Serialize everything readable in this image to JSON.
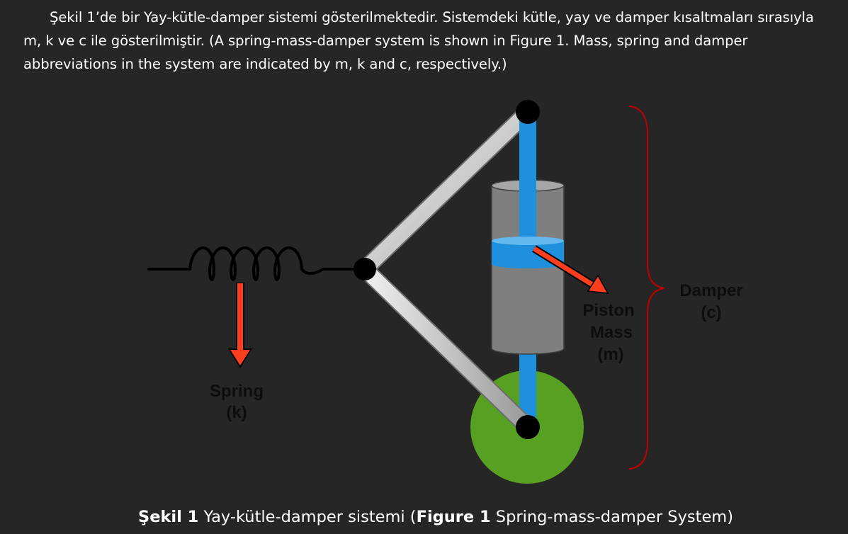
{
  "paragraph": {
    "text": "Şekil 1’de bir Yay-kütle-damper sistemi gösterilmektedir. Sistemdeki kütle, yay ve damper kısaltmaları sırasıyla m, k ve c ile gösterilmiştir. (A spring-mass-damper system is shown in Figure 1. Mass, spring and damper abbreviations in the system are indicated by m, k and c, respectively.)"
  },
  "figure": {
    "spring_label": "Spring",
    "spring_symbol": "(k)",
    "piston_label": "Piston",
    "mass_label": "Mass",
    "mass_symbol": "(m)",
    "damper_label": "Damper",
    "damper_symbol": "(c)",
    "colors": {
      "background": "#262626",
      "rod": "#1e90dd",
      "cylinder": "#7f7f7f",
      "wheel": "#58a021",
      "arrow": "#ff3d1f",
      "brace": "#c00000",
      "link": "#d0d0d0"
    }
  },
  "caption": {
    "part1_bold": "Şekil 1",
    "part2": " Yay-kütle-damper sistemi (",
    "part3_bold": "Figure 1",
    "part4": " Spring-mass-damper System)"
  }
}
